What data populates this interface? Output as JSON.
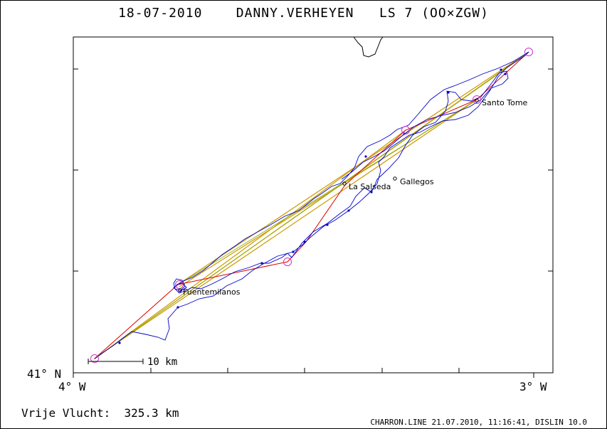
{
  "header": {
    "date": "18-07-2010",
    "pilot": "DANNY.VERHEYEN",
    "glider": "LS 7 (OO×ZGW)"
  },
  "axes": {
    "y_label": "41° N",
    "x_left_label": "4° W",
    "x_right_label": "3° W"
  },
  "places": [
    {
      "name": "Santo Tome"
    },
    {
      "name": "La Salseda"
    },
    {
      "name": "Gallegos"
    },
    {
      "name": "Fuentemilanos"
    }
  ],
  "scale_bar": {
    "label": "10 km"
  },
  "footer": {
    "distance_label": "Vrije Vlucht:",
    "distance_value": "325.3 km",
    "credit": "CHARRON.LINE 21.07.2010, 11:16:41, DISLIN 10.0"
  },
  "colors": {
    "track": "#0000cc",
    "task_line": "#cc9900",
    "alt_line": "#dd0000",
    "turnpoint": "#cc33cc",
    "coast": "#000000"
  }
}
